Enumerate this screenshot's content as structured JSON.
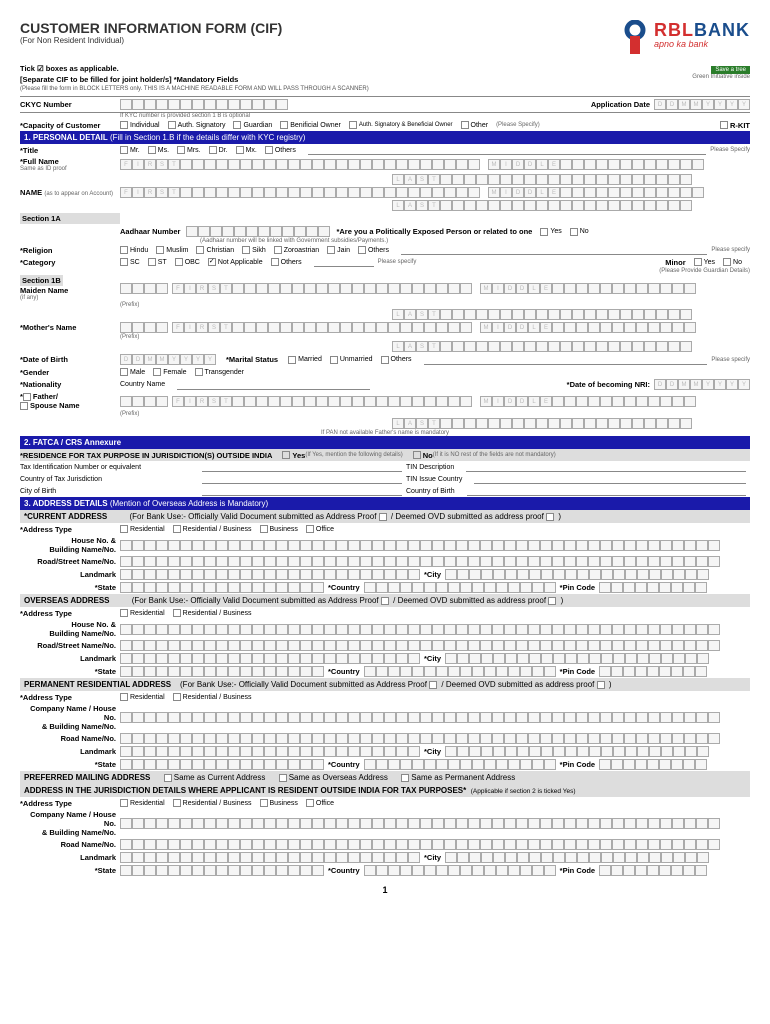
{
  "header": {
    "title": "CUSTOMER INFORMATION FORM (CIF)",
    "subtitle": "(For Non Resident Individual)",
    "bank_name_1": "RBL",
    "bank_name_2": "BANK",
    "tagline": "apno ka bank"
  },
  "instructions": {
    "tick_boxes": "Tick ☑ boxes as applicable.",
    "separate_cif": "[Separate CIF to be filled for joint holder/s] *Mandatory Fields",
    "fine_print": "(Please fill the form in BLOCK LETTERS only. THIS IS A MACHINE READABLE FORM AND WILL PASS THROUGH A SCANNER)",
    "save_tree": "Save a tree",
    "green_init": "Green Initiative inside"
  },
  "ckyc": {
    "label": "CKYC Number",
    "note": "If KYC number is provided section 1 B is optional",
    "app_date_label": "Application Date",
    "date_hint": [
      "D",
      "D",
      "M",
      "M",
      "Y",
      "Y",
      "Y",
      "Y"
    ]
  },
  "capacity": {
    "label": "*Capacity of Customer",
    "opts": [
      "Individual",
      "Auth. Signatory",
      "Guardian",
      "Benificial Owner",
      "Auth. Signatory & Beneficial Owner",
      "Other"
    ],
    "please_specify": "(Please Specify)",
    "rkit": "R-KIT"
  },
  "section1": {
    "header": "1. PERSONAL DETAIL",
    "subheader": "(Fill in Section 1.B if the details differ with KYC registry)",
    "title_label": "*Title",
    "title_opts": [
      "Mr.",
      "Ms.",
      "Mrs.",
      "Dr.",
      "Mx.",
      "Others"
    ],
    "please_specify": "Please Specify",
    "full_name_label": "*Full Name",
    "full_name_note": "Same as ID proof",
    "name_label": "NAME",
    "name_note": "(as to appear on Account)",
    "first_hint": [
      "F",
      "I",
      "R",
      "S",
      "T"
    ],
    "middle_hint": [
      "M",
      "I",
      "D",
      "D",
      "L",
      "E"
    ],
    "last_hint": [
      "L",
      "A",
      "S",
      "T"
    ],
    "section_1a": "Section 1A",
    "aadhaar_label": "Aadhaar Number",
    "aadhaar_note": "(Aadhaar number will be linked with Government subsidies/Payments.)",
    "pep_label": "*Are you a Politically Exposed Person or related to one",
    "yes": "Yes",
    "no": "No",
    "religion_label": "*Religion",
    "religion_opts": [
      "Hindu",
      "Muslim",
      "Christian",
      "Sikh",
      "Zoroastrian",
      "Jain",
      "Others"
    ],
    "religion_specify": "Please specify",
    "category_label": "*Category",
    "category_opts": [
      "SC",
      "ST",
      "OBC",
      "Not Applicable",
      "Others"
    ],
    "category_specify": "Please specify",
    "minor_label": "Minor",
    "guardian_note": "(Please Provide Guardian Details)",
    "section_1b": "Section 1B",
    "maiden_label": "Maiden Name",
    "maiden_note": "(if any)",
    "prefix_note": "(Prefix)",
    "mother_label": "*Mother's Name",
    "dob_label": "*Date of Birth",
    "marital_label": "*Marital Status",
    "marital_opts": [
      "Married",
      "Unmarried",
      "Others"
    ],
    "gender_label": "*Gender",
    "gender_opts": [
      "Male",
      "Female",
      "Transgender"
    ],
    "nationality_label": "*Nationality",
    "country_name": "Country Name",
    "nri_date_label": "*Date of becoming NRI:",
    "father_label": "Father/",
    "spouse_label": "Spouse Name",
    "pan_note": "If PAN not available Father's name is mandatory"
  },
  "section2": {
    "header": "2. FATCA / CRS Annexure",
    "residence_label": "*RESIDENCE FOR TAX PURPOSE IN JURISDICTION(S) OUTSIDE INDIA",
    "yes": "Yes",
    "yes_note": "(If Yes, mention the following details)",
    "no": "No",
    "no_note": "(If it is NO rest of the fields are not mandatory)",
    "tin_label": "Tax Identification Number or equivalent",
    "tin_desc": "TIN Description",
    "tax_country_label": "Country of Tax Jurisdiction",
    "tin_issue": "TIN Issue Country",
    "city_birth": "City of Birth",
    "country_birth": "Country of Birth"
  },
  "section3": {
    "header": "3. ADDRESS DETAILS",
    "subheader": "(Mention of Overseas Address is Mandatory)",
    "current_addr": "*CURRENT ADDRESS",
    "bank_use": "(For Bank Use:- Officially Valid Document submitted as Address Proof",
    "deemed_ovd": "/ Deemed OVD submitted as address proof",
    "addr_type": "*Address Type",
    "addr_opts": [
      "Residential",
      "Residential / Business",
      "Business",
      "Office"
    ],
    "addr_opts2": [
      "Residential",
      "Residential / Business"
    ],
    "house": "House No. &",
    "building": "Building Name/No.",
    "road": "Road/Street Name/No.",
    "road2": "Road Name/No.",
    "landmark": "Landmark",
    "city": "*City",
    "state": "*State",
    "country": "*Country",
    "pin": "*Pin Code",
    "overseas_addr": "OVERSEAS ADDRESS",
    "perm_addr": "PERMANENT RESIDENTIAL ADDRESS",
    "company_name": "Company Name / House No.",
    "building2": "& Building Name/No.",
    "pref_mail": "PREFERRED MAILING ADDRESS",
    "same_current": "Same as Current Address",
    "same_overseas": "Same as Overseas Address",
    "same_perm": "Same as Permanent Address",
    "jurisdiction": "ADDRESS IN THE JURISDICTION DETAILS WHERE APPLICANT IS RESIDENT OUTSIDE INDIA FOR TAX PURPOSES*",
    "jurisdiction_note": "(Applicable if section 2 is ticked Yes)"
  },
  "page": "1"
}
